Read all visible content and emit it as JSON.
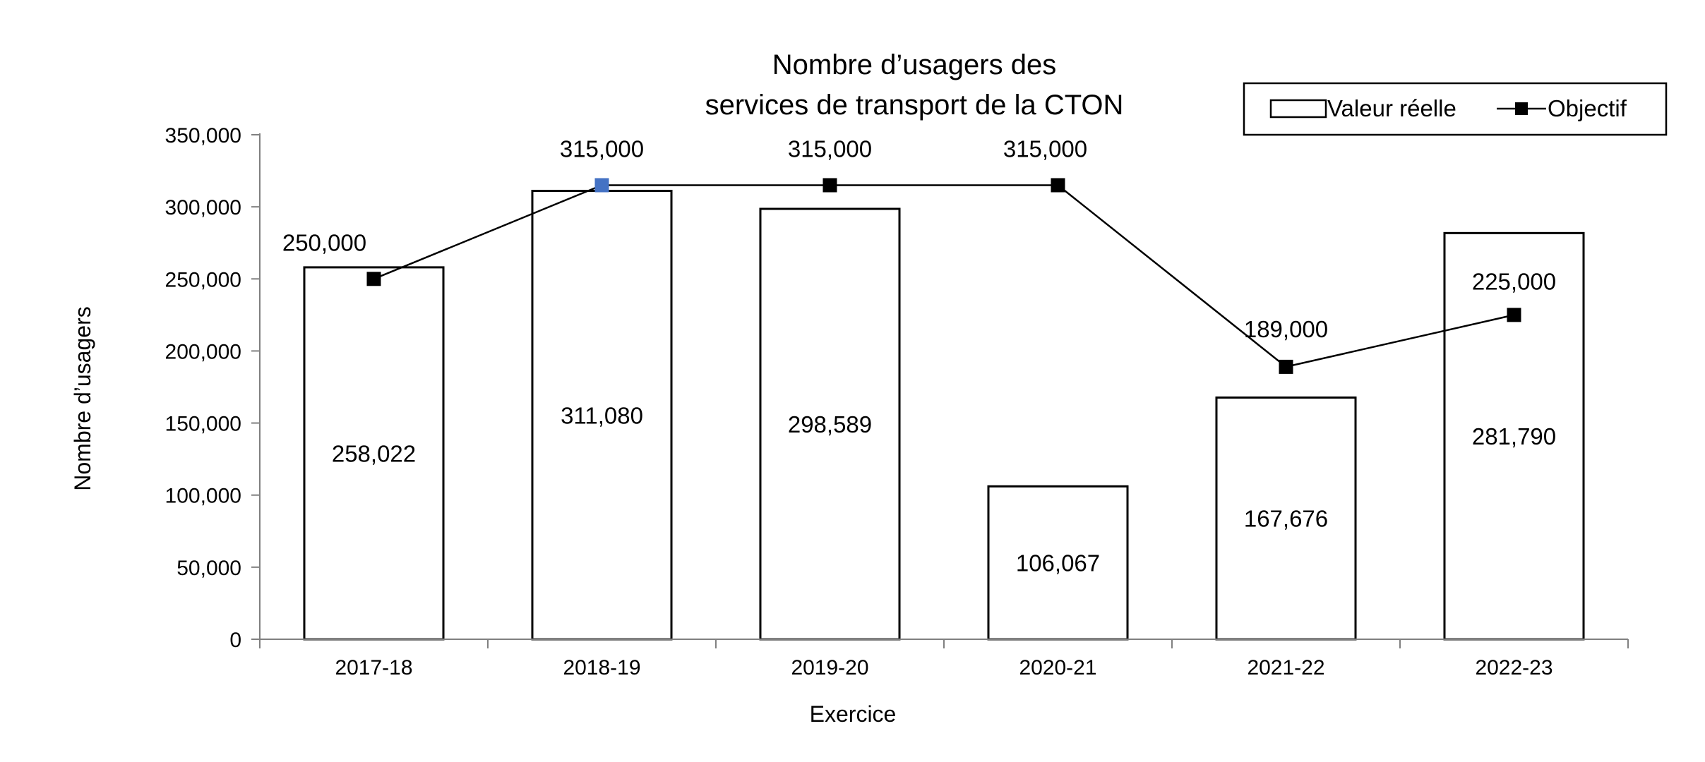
{
  "chart_data": {
    "type": "bar",
    "title_lines": [
      "Nombre d’usagers des",
      "services de transport de la CTON"
    ],
    "xlabel": "Exercice",
    "ylabel": "Nombre d’usagers",
    "categories": [
      "2017-18",
      "2018-19",
      "2019-20",
      "2020-21",
      "2021-22",
      "2022-23"
    ],
    "ylim": [
      0,
      350000
    ],
    "yticks": [
      0,
      50000,
      100000,
      150000,
      200000,
      250000,
      300000,
      350000
    ],
    "ytick_labels": [
      "0",
      "50,000",
      "100,000",
      "150,000",
      "200,000",
      "250,000",
      "300,000",
      "350,000"
    ],
    "grid": false,
    "legend_position": "top-right",
    "series": [
      {
        "name": "Valeur réelle",
        "type": "bar",
        "values": [
          258022,
          311080,
          298589,
          106067,
          167676,
          281790
        ],
        "labels": [
          "258,022",
          "311,080",
          "298,589",
          "106,067",
          "167,676",
          "281,790"
        ],
        "fill": "#ffffff",
        "stroke": "#000000"
      },
      {
        "name": "Objectif",
        "type": "line",
        "values": [
          250000,
          315000,
          315000,
          315000,
          189000,
          225000
        ],
        "labels": [
          "250,000",
          "315,000",
          "315,000",
          "315,000",
          "189,000",
          "225,000"
        ],
        "color": "#000000",
        "highlight_color": "#4472c4",
        "highlight_index": 1
      }
    ]
  }
}
